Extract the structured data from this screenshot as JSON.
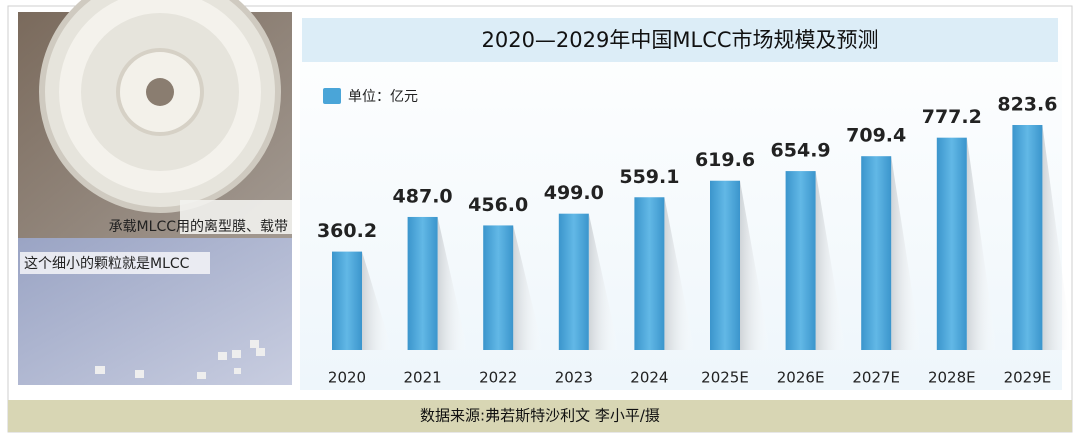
{
  "photos": [
    {
      "caption": "承载MLCC用的离型膜、载带"
    },
    {
      "caption": "这个细小的颗粒就是MLCC"
    }
  ],
  "chart_data": {
    "type": "bar",
    "title": "2020—2029年中国MLCC市场规模及预测",
    "categories": [
      "2020",
      "2021",
      "2022",
      "2023",
      "2024",
      "2025E",
      "2026E",
      "2027E",
      "2028E",
      "2029E"
    ],
    "series": [
      {
        "name": "单位：亿元",
        "color": "#4aa5d8",
        "values": [
          360.2,
          487.0,
          456.0,
          499.0,
          559.1,
          619.6,
          654.9,
          709.4,
          777.2,
          823.6
        ],
        "value_labels": [
          "360.2",
          "487.0",
          "456.0",
          "499.0",
          "559.1",
          "619.6",
          "654.9",
          "709.4",
          "777.2",
          "823.6"
        ]
      }
    ],
    "source": "数据来源:弗若斯特沙利文 李小平/摄"
  }
}
